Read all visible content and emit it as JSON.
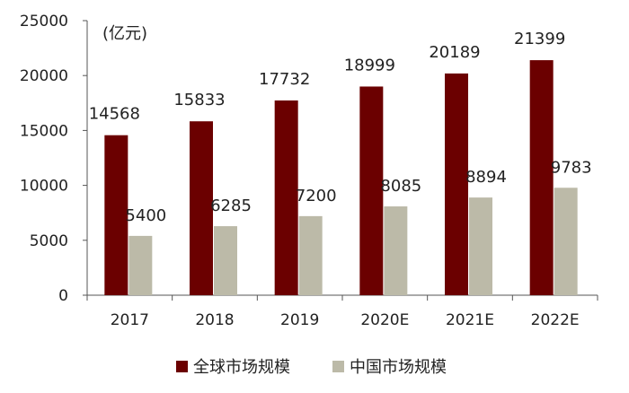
{
  "chart_data": {
    "type": "bar",
    "unit_label": "(亿元)",
    "categories": [
      "2017",
      "2018",
      "2019",
      "2020E",
      "2021E",
      "2022E"
    ],
    "series": [
      {
        "name": "全球市场规模",
        "color": "#6b0000",
        "values": [
          14568,
          15833,
          17732,
          18999,
          20189,
          21399
        ]
      },
      {
        "name": "中国市场规模",
        "color": "#bcbaa8",
        "values": [
          5400,
          6285,
          7200,
          8085,
          8894,
          9783
        ]
      }
    ],
    "ylim": [
      0,
      25000
    ],
    "yticks": [
      0,
      5000,
      10000,
      15000,
      20000,
      25000
    ],
    "grid": false,
    "legend_position": "bottom"
  }
}
